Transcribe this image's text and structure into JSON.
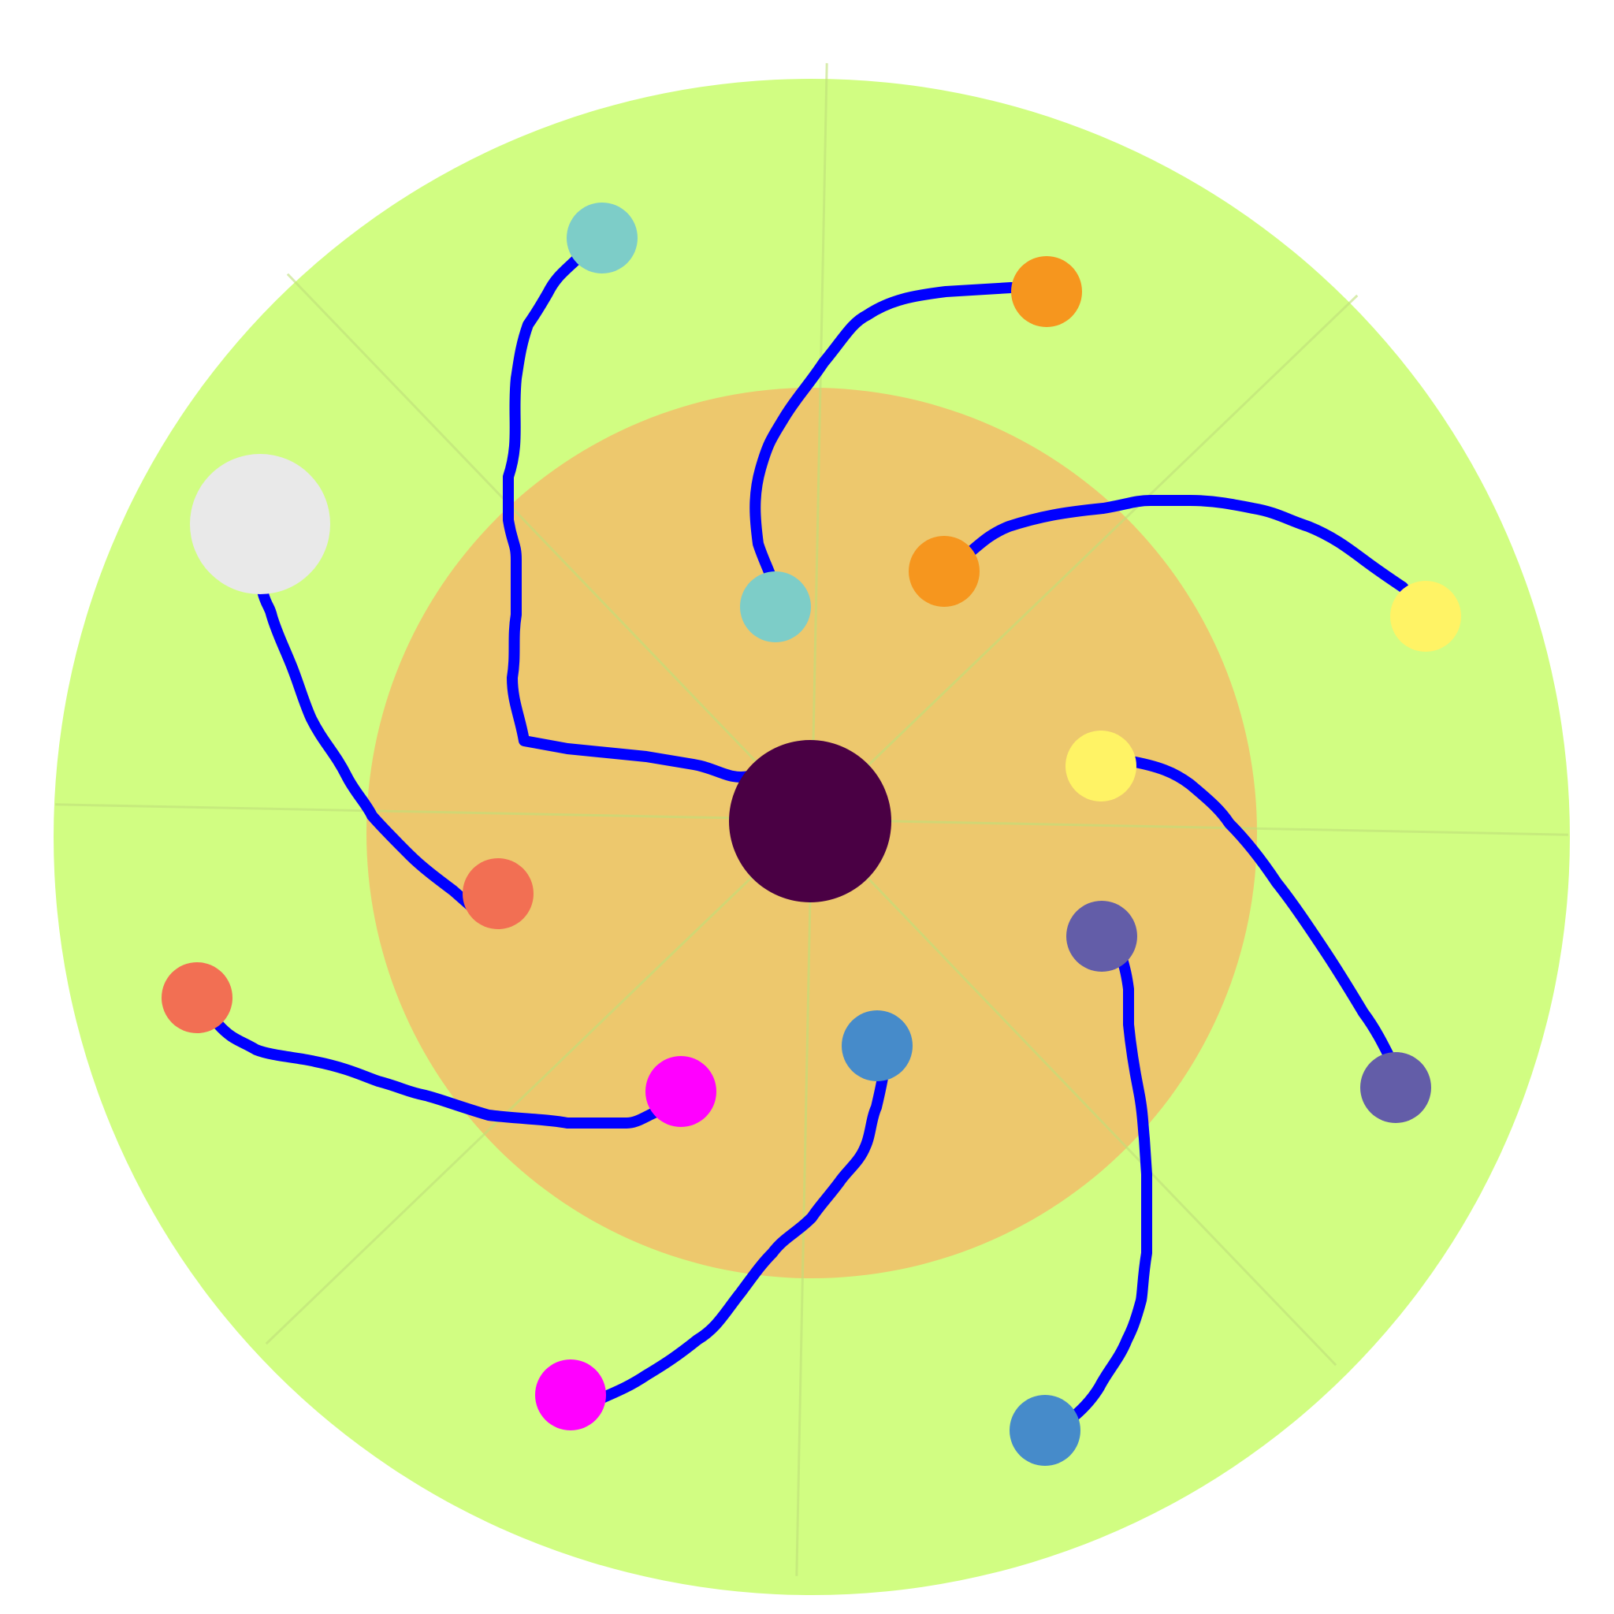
{
  "game": {
    "board": {
      "outer_color": "#D1FD82",
      "inner_color": "#EDC86D",
      "spoke_color": "#BFE07A",
      "spoke_count": 8,
      "hub_color": "#4A0044"
    },
    "line_color": "#0000FF",
    "pairs": [
      {
        "id": "teal",
        "color": "#7DCDC8"
      },
      {
        "id": "orange-a",
        "color": "#F6961E"
      },
      {
        "id": "orange-b",
        "color": "#F6961E"
      },
      {
        "id": "yellow",
        "color": "#FFF365"
      },
      {
        "id": "slate",
        "color": "#635DA8"
      },
      {
        "id": "steel",
        "color": "#468BCA"
      },
      {
        "id": "magenta",
        "color": "#FF00FF"
      },
      {
        "id": "coral",
        "color": "#F26F53"
      }
    ],
    "free_dot": {
      "color": "#E9E9E9"
    }
  }
}
